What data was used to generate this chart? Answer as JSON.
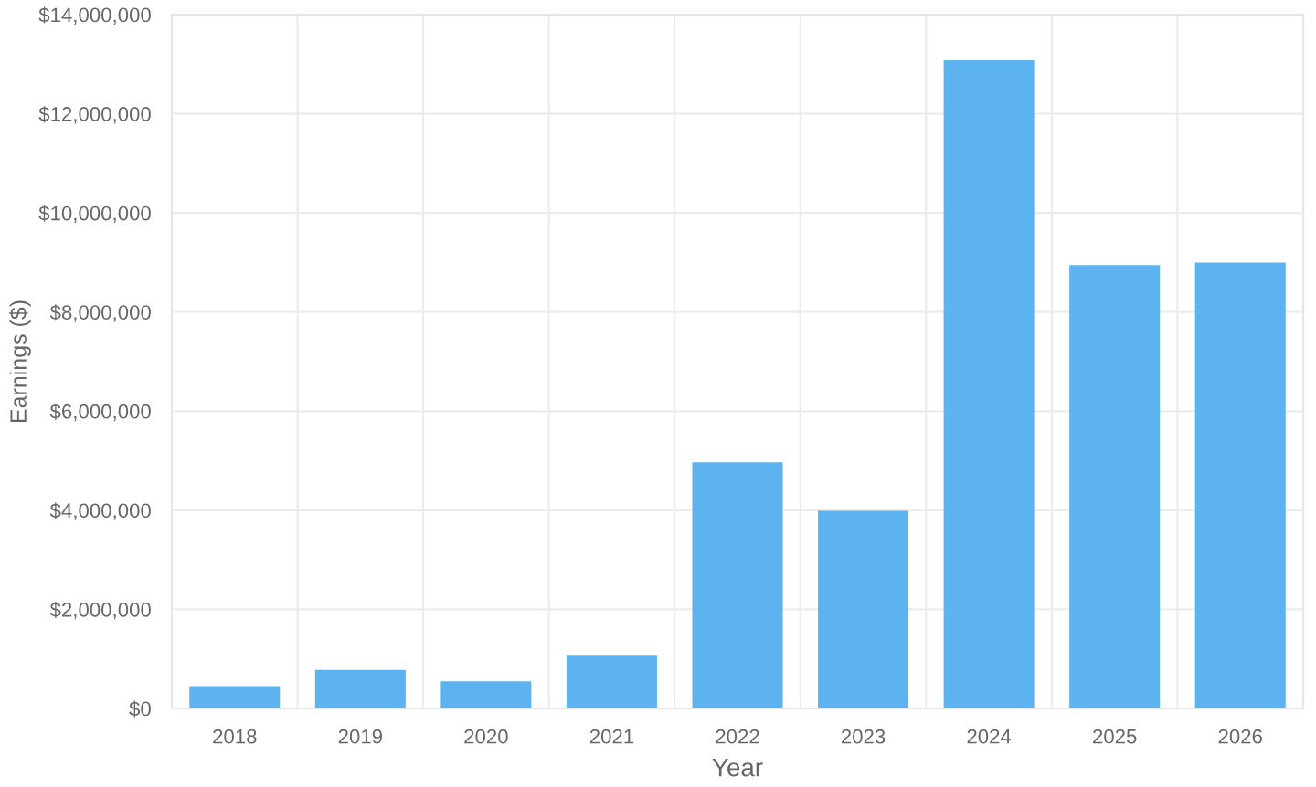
{
  "chart_data": {
    "type": "bar",
    "xlabel": "Year",
    "ylabel": "Earnings ($)",
    "categories": [
      "2018",
      "2019",
      "2020",
      "2021",
      "2022",
      "2023",
      "2024",
      "2025",
      "2026"
    ],
    "values": [
      450000,
      780000,
      550000,
      1080000,
      4970000,
      3990000,
      13080000,
      8950000,
      9000000
    ],
    "color": "#5db3ef",
    "ylim": [
      0,
      14000000
    ],
    "yticks": [
      {
        "value": 0,
        "label": "$0"
      },
      {
        "value": 2000000,
        "label": "$2,000,000"
      },
      {
        "value": 4000000,
        "label": "$4,000,000"
      },
      {
        "value": 6000000,
        "label": "$6,000,000"
      },
      {
        "value": 8000000,
        "label": "$8,000,000"
      },
      {
        "value": 10000000,
        "label": "$10,000,000"
      },
      {
        "value": 12000000,
        "label": "$12,000,000"
      },
      {
        "value": 14000000,
        "label": "$14,000,000"
      }
    ],
    "grid": true
  }
}
